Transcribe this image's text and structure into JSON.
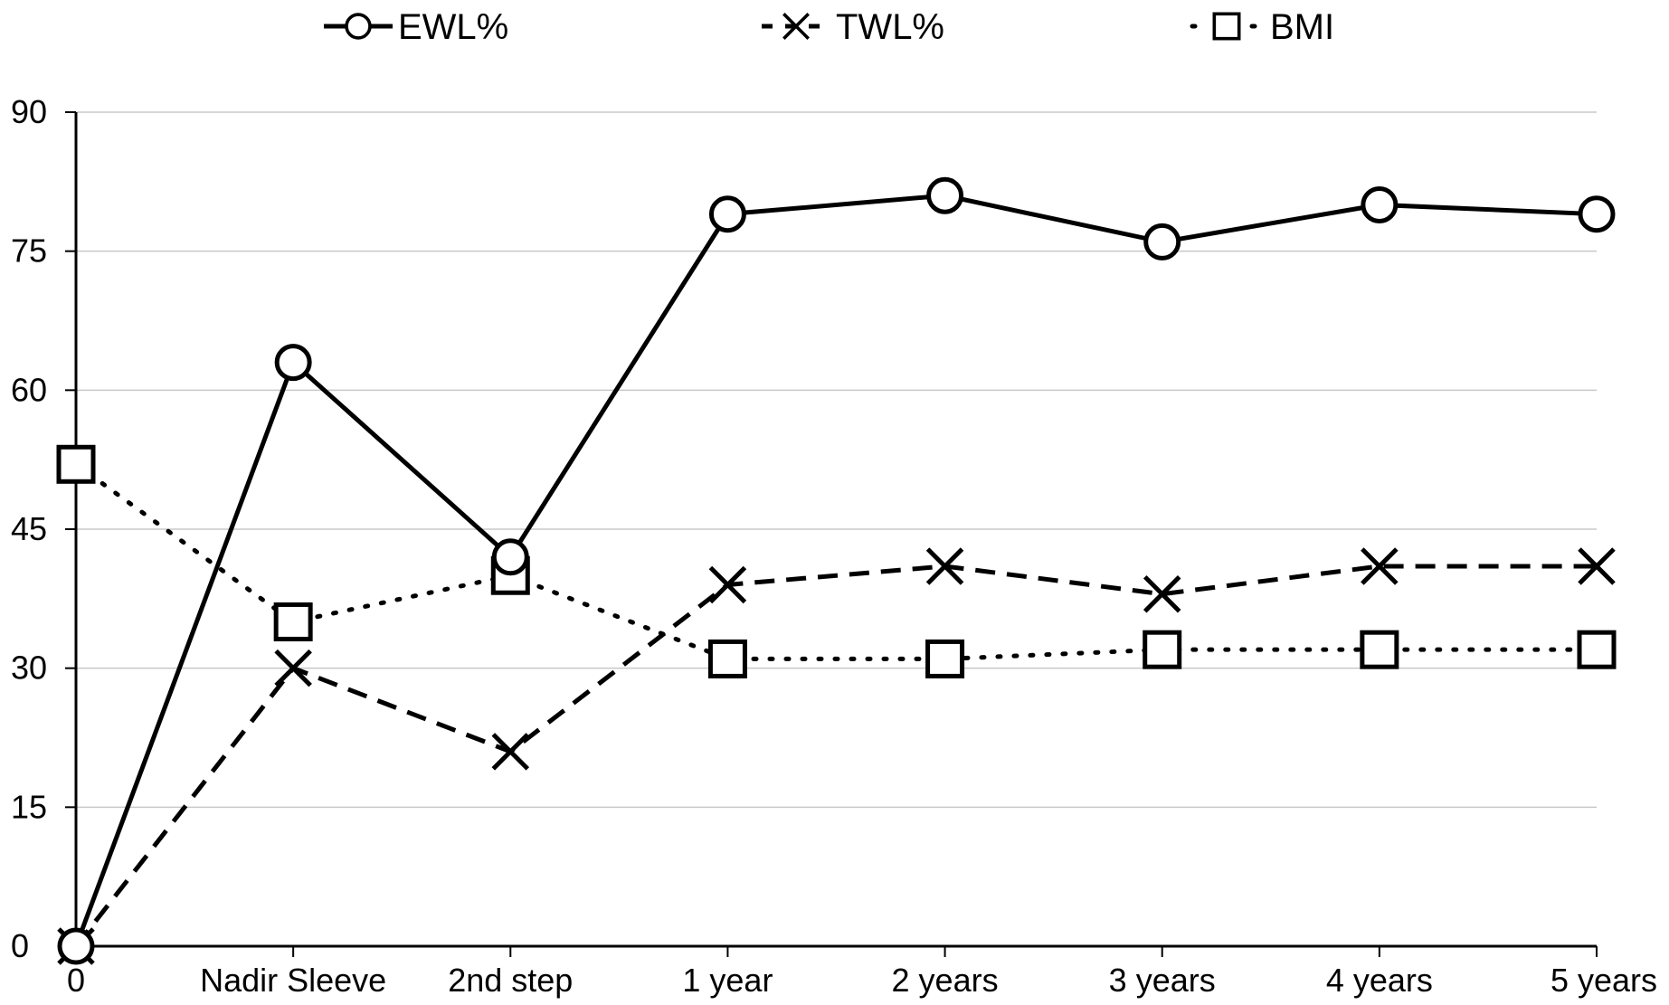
{
  "chart_data": {
    "type": "line",
    "categories": [
      "0",
      "Nadir Sleeve",
      "2nd step",
      "1 year",
      "2 years",
      "3 years",
      "4 years",
      "5 years"
    ],
    "ylim": [
      0,
      90
    ],
    "yticks": [
      "0",
      "15",
      "30",
      "45",
      "60",
      "75",
      "90"
    ],
    "grid": true,
    "legend_position": "top",
    "series": [
      {
        "name": "EWL%",
        "marker": "circle",
        "line": "solid",
        "values": [
          0,
          63,
          42,
          79,
          81,
          76,
          80,
          79
        ]
      },
      {
        "name": "TWL%",
        "marker": "x",
        "line": "dashed",
        "values": [
          0,
          30,
          21,
          39,
          41,
          38,
          41,
          41
        ]
      },
      {
        "name": "BMI",
        "marker": "square",
        "line": "dotted",
        "values": [
          52,
          35,
          40,
          31,
          31,
          32,
          32,
          32
        ]
      }
    ],
    "colors": {
      "line": "#000000",
      "grid": "#c8c8c8",
      "marker_fill": "#ffffff"
    }
  }
}
